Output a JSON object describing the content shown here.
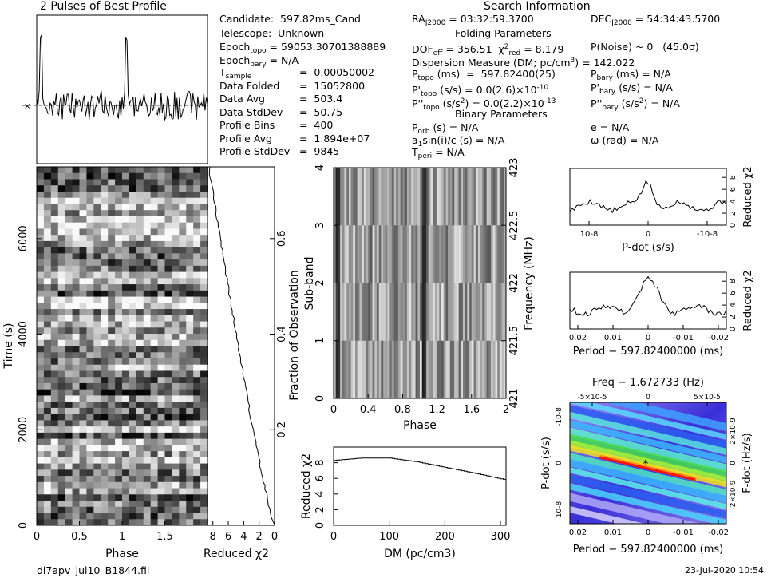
{
  "header": {
    "profile_title": "2 Pulses of Best Profile",
    "search_title": "Search Information",
    "folding_title": "Folding Parameters",
    "binary_title": "Binary Parameters"
  },
  "info": {
    "candidate": "Candidate:  597.82ms_Cand",
    "telescope": "Telescope:  Unknown",
    "epoch_topo_label": "Epoch",
    "epoch_topo_sub": "topo",
    "epoch_topo_value": " = 59053.30701388889",
    "epoch_bary_label": "Epoch",
    "epoch_bary_sub": "bary",
    "epoch_bary_value": " = N/A",
    "tsample_label": "T",
    "tsample_sub": "sample",
    "tsample_value": "0.00050002",
    "data_folded_label": "Data Folded",
    "data_folded_value": "15052800",
    "data_avg_label": "Data Avg",
    "data_avg_value": "503.4",
    "data_std_label": "Data StdDev",
    "data_std_value": "50.75",
    "profile_bins_label": "Profile Bins",
    "profile_bins_value": "400",
    "profile_avg_label": "Profile Avg",
    "profile_avg_value": "1.894e+07",
    "profile_std_label": "Profile StdDev",
    "profile_std_value": "9845",
    "ra_label": "RA",
    "ra_sub": "J2000",
    "ra_value": " = 03:32:59.3700",
    "dec_label": "DEC",
    "dec_sub": "J2000",
    "dec_value": " = 54:34:43.5700",
    "dof_label": "DOF",
    "dof_sub": "eff",
    "dof_value": " = 356.51  χ",
    "chi_sup": "2",
    "chi_sub": "red",
    "chi_value": " = 8.179",
    "pnoise": "P(Noise) ~ 0   (45.0σ)",
    "dm_line": "Dispersion Measure (DM; pc/cm",
    "dm_sup": "3",
    "dm_value": ") = 142.022",
    "ptopo_label": "P",
    "ptopo_sub": "topo",
    "ptopo_value": " (ms)  =  597.82400(25)",
    "pdtopo_label": "P'",
    "pdtopo_sub": "topo",
    "pdtopo_value": " (s/s) = 0.0(2.6)×10",
    "pdtopo_exp": "-10",
    "pddtopo_label": "P''",
    "pddtopo_sub": "topo",
    "pddtopo_value": " (s/s",
    "pddtopo_sup": "2",
    "pddtopo_value2": ") = 0.0(2.2)×10",
    "pddtopo_exp": "-13",
    "pbary_label": "P",
    "pbary_sub": "bary",
    "pbary_value": " (ms) = N/A",
    "pdbary_label": "P'",
    "pdbary_sub": "bary",
    "pdbary_value": " (s/s) = N/A",
    "pddbary_label": "P''",
    "pddbary_sub": "bary",
    "pddbary_value": " (s/s",
    "pddbary_sup": "2",
    "pddbary_value2": ") = N/A",
    "porb_label": "P",
    "porb_sub": "orb",
    "porb_value": " (s) = N/A",
    "asini_label": "a",
    "asini_sub": "1",
    "asini_value": "sin(i)/c (s) = N/A",
    "tperi_label": "T",
    "tperi_sub": "peri",
    "tperi_value": " = N/A",
    "ecc": "e = N/A",
    "omega": "ω (rad) = N/A"
  },
  "footer": {
    "filename": "dl7apv_jul10_B1844.fil",
    "timestamp": "23-Jul-2020 10:54"
  },
  "colors": {
    "curve": "#000000",
    "peak": "#ff0000",
    "low": "#2a1bd8"
  },
  "chart_data": [
    {
      "type": "line",
      "name": "profile",
      "title": "2 Pulses of Best Profile",
      "x_range": [
        0,
        2
      ],
      "peaks_at_phase": [
        0.05,
        1.05
      ],
      "grid": false
    },
    {
      "type": "heatmap",
      "name": "time-phase",
      "xlabel": "Phase",
      "ylabel": "Time (s)",
      "xlim": [
        0,
        2
      ],
      "ylim": [
        0,
        7500
      ],
      "xticks": [
        "0",
        "0.5",
        "1",
        "1.5"
      ],
      "yticks": [
        "0",
        "2000",
        "4000",
        "6000"
      ]
    },
    {
      "type": "line",
      "name": "time-chi2",
      "xlabel": "Reduced χ2",
      "ylabel_right": "Fraction of Observation",
      "xticks": [
        "8",
        "6",
        "4",
        "2",
        "0"
      ],
      "yticks": [
        "0.2",
        "0.4",
        "0.6"
      ],
      "xlim": [
        8.7,
        0
      ]
    },
    {
      "type": "heatmap",
      "name": "subband-phase",
      "xlabel": "Phase",
      "ylabel": "Sub-band",
      "ylabel_right": "Frequency (MHz)",
      "xticks": [
        "0",
        "0.4",
        "0.8",
        "1.2",
        "1.6",
        "2"
      ],
      "yticks": [
        "0",
        "1",
        "2",
        "3",
        "4"
      ],
      "yticks_right": [
        "421",
        "421.5",
        "422",
        "422.5",
        "423"
      ]
    },
    {
      "type": "line",
      "name": "dm-chi2",
      "xlabel": "DM (pc/cm3)",
      "ylabel": "Reduced χ2",
      "xlim": [
        0,
        310
      ],
      "ylim": [
        0,
        10
      ],
      "xticks": [
        "0",
        "100",
        "200",
        "300"
      ],
      "yticks": [
        "0",
        "2",
        "4",
        "6",
        "8"
      ],
      "x": [
        0,
        50,
        100,
        150,
        200,
        250,
        310
      ],
      "y": [
        8.3,
        8.6,
        8.6,
        8.1,
        7.4,
        6.7,
        5.8
      ]
    },
    {
      "type": "line",
      "name": "pdot-chi2",
      "xlabel": "P-dot (s/s)",
      "ylabel_right": "Reduced χ2",
      "xticks": [
        "10-8",
        "0",
        "-10-8"
      ],
      "yticks": [
        "0",
        "2",
        "4",
        "6",
        "8"
      ],
      "ylim": [
        0,
        9.5
      ],
      "peak_value": 7.6
    },
    {
      "type": "line",
      "name": "period-chi2",
      "xlabel": "Period − 597.82400000 (ms)",
      "ylabel_right": "Reduced χ2",
      "xticks": [
        "0.02",
        "0.01",
        "0",
        "-0.01",
        "-0.02"
      ],
      "yticks": [
        "0",
        "2",
        "4",
        "6",
        "8"
      ],
      "ylim": [
        0,
        9.5
      ],
      "peak_value": 8.0
    },
    {
      "type": "heatmap",
      "name": "period-pdot",
      "title": "Freq − 1.672733 (Hz)",
      "xlabel": "Period − 597.82400000 (ms)",
      "ylabel": "P-dot (s/s)",
      "ylabel_right": "F-dot (Hz/s)",
      "xticks": [
        "0.02",
        "0.01",
        "0",
        "-0.01",
        "-0.02"
      ],
      "xticks_top": [
        "-5×10-5",
        "0",
        "5×10-5"
      ],
      "yticks": [
        "-10-8",
        "0",
        "10-8"
      ],
      "yticks_right": [
        "2×10-9",
        "0",
        "-2×10-9"
      ]
    }
  ]
}
